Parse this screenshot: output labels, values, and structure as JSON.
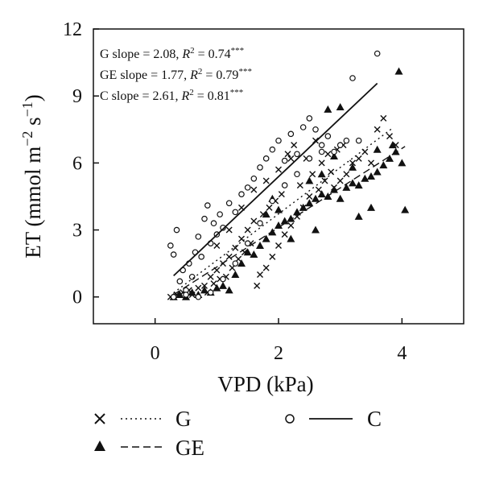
{
  "chart_data": {
    "type": "scatter",
    "xlabel": "VPD (kPa)",
    "ylabel_main": "ET (mmol m",
    "ylabel_exp1": "−2",
    "ylabel_mid": " s",
    "ylabel_exp2": "−1",
    "ylabel_end": ")",
    "xlim": [
      -1,
      5
    ],
    "ylim": [
      -1.2,
      12
    ],
    "xticks": [
      "0",
      "2",
      "4"
    ],
    "yticks": [
      "0",
      "3",
      "6",
      "9",
      "12"
    ],
    "legend": [
      {
        "marker": "×",
        "label": "G",
        "line": "dotted"
      },
      {
        "marker": "○",
        "label": "C",
        "line": "solid"
      },
      {
        "marker": "▲",
        "label": "GE",
        "line": "dashed"
      }
    ],
    "annotations": [
      {
        "series": "G",
        "slope_text": "G slope = 2.08, ",
        "r2_label": "R",
        "r2_sup": "2",
        "r2_value": " = 0.74",
        "sig": "***"
      },
      {
        "series": "GE",
        "slope_text": "GE slope = 1.77, ",
        "r2_label": "R",
        "r2_sup": "2",
        "r2_value": " = 0.79",
        "sig": "***"
      },
      {
        "series": "C",
        "slope_text": "C slope = 2.61, ",
        "r2_label": "R",
        "r2_sup": "2",
        "r2_value": " = 0.81",
        "sig": "***"
      }
    ],
    "series": [
      {
        "name": "G",
        "marker": "x",
        "fit": {
          "slope": 2.08,
          "x_range": [
            0.3,
            3.85
          ]
        },
        "points": [
          [
            0.25,
            0.0
          ],
          [
            0.35,
            0.1
          ],
          [
            0.45,
            0.2
          ],
          [
            0.55,
            0.3
          ],
          [
            0.6,
            0.1
          ],
          [
            0.7,
            0.4
          ],
          [
            0.8,
            0.5
          ],
          [
            0.85,
            0.2
          ],
          [
            0.9,
            0.9
          ],
          [
            0.95,
            0.6
          ],
          [
            1.0,
            1.2
          ],
          [
            1.05,
            0.8
          ],
          [
            1.1,
            1.5
          ],
          [
            1.15,
            0.9
          ],
          [
            1.2,
            1.8
          ],
          [
            1.25,
            1.3
          ],
          [
            1.3,
            2.2
          ],
          [
            1.35,
            1.7
          ],
          [
            1.4,
            2.6
          ],
          [
            1.45,
            2.0
          ],
          [
            1.5,
            3.0
          ],
          [
            1.55,
            2.4
          ],
          [
            1.6,
            3.4
          ],
          [
            1.65,
            0.5
          ],
          [
            1.7,
            1.0
          ],
          [
            1.75,
            3.7
          ],
          [
            1.8,
            1.3
          ],
          [
            1.85,
            4.0
          ],
          [
            1.9,
            1.8
          ],
          [
            1.95,
            4.3
          ],
          [
            2.0,
            2.3
          ],
          [
            2.05,
            4.6
          ],
          [
            2.1,
            2.8
          ],
          [
            2.15,
            6.4
          ],
          [
            2.2,
            3.2
          ],
          [
            2.25,
            6.8
          ],
          [
            2.3,
            3.6
          ],
          [
            2.35,
            5.0
          ],
          [
            2.4,
            4.0
          ],
          [
            2.45,
            6.2
          ],
          [
            2.5,
            4.5
          ],
          [
            2.55,
            5.5
          ],
          [
            2.6,
            7.0
          ],
          [
            2.65,
            4.8
          ],
          [
            2.7,
            6.0
          ],
          [
            2.75,
            5.2
          ],
          [
            2.8,
            6.4
          ],
          [
            2.85,
            5.6
          ],
          [
            2.9,
            4.9
          ],
          [
            2.95,
            6.6
          ],
          [
            3.0,
            5.2
          ],
          [
            3.05,
            6.8
          ],
          [
            3.1,
            5.5
          ],
          [
            3.2,
            6.0
          ],
          [
            3.3,
            6.2
          ],
          [
            3.4,
            6.5
          ],
          [
            3.5,
            6.0
          ],
          [
            3.6,
            7.5
          ],
          [
            3.7,
            8.0
          ],
          [
            3.8,
            7.2
          ],
          [
            3.9,
            6.8
          ],
          [
            1.0,
            2.3
          ],
          [
            1.2,
            3.0
          ],
          [
            1.4,
            4.0
          ],
          [
            1.6,
            4.8
          ],
          [
            1.8,
            5.2
          ],
          [
            2.0,
            5.7
          ],
          [
            2.2,
            6.2
          ]
        ]
      },
      {
        "name": "GE",
        "marker": "triangle",
        "fit": {
          "slope": 1.77,
          "x_range": [
            0.3,
            4.05
          ]
        },
        "points": [
          [
            0.3,
            0.0
          ],
          [
            0.4,
            0.1
          ],
          [
            0.5,
            0.0
          ],
          [
            0.6,
            0.2
          ],
          [
            0.7,
            0.1
          ],
          [
            0.8,
            0.3
          ],
          [
            0.9,
            0.2
          ],
          [
            1.0,
            0.4
          ],
          [
            1.1,
            0.5
          ],
          [
            1.2,
            0.3
          ],
          [
            1.3,
            1.0
          ],
          [
            1.4,
            1.5
          ],
          [
            1.5,
            2.0
          ],
          [
            1.6,
            1.9
          ],
          [
            1.7,
            2.3
          ],
          [
            1.8,
            2.6
          ],
          [
            1.9,
            2.9
          ],
          [
            2.0,
            3.2
          ],
          [
            2.1,
            3.4
          ],
          [
            2.2,
            3.5
          ],
          [
            2.3,
            3.8
          ],
          [
            2.4,
            4.0
          ],
          [
            2.5,
            4.2
          ],
          [
            2.6,
            4.4
          ],
          [
            2.7,
            4.6
          ],
          [
            2.8,
            4.5
          ],
          [
            2.9,
            4.8
          ],
          [
            3.0,
            4.4
          ],
          [
            3.1,
            4.9
          ],
          [
            3.2,
            5.1
          ],
          [
            3.3,
            5.0
          ],
          [
            3.4,
            5.3
          ],
          [
            3.5,
            5.4
          ],
          [
            3.6,
            5.6
          ],
          [
            3.7,
            5.9
          ],
          [
            3.8,
            6.2
          ],
          [
            3.9,
            6.5
          ],
          [
            4.0,
            6.0
          ],
          [
            4.05,
            3.9
          ],
          [
            3.95,
            10.1
          ],
          [
            3.0,
            8.5
          ],
          [
            2.8,
            8.4
          ],
          [
            3.5,
            4.0
          ],
          [
            3.3,
            3.6
          ],
          [
            2.6,
            3.0
          ],
          [
            2.2,
            2.6
          ],
          [
            2.0,
            3.9
          ],
          [
            1.9,
            4.4
          ],
          [
            1.8,
            3.7
          ],
          [
            2.5,
            5.2
          ],
          [
            3.2,
            5.8
          ],
          [
            3.6,
            6.6
          ],
          [
            3.85,
            6.8
          ],
          [
            2.9,
            6.3
          ],
          [
            2.7,
            5.5
          ]
        ]
      },
      {
        "name": "C",
        "marker": "circle",
        "fit": {
          "slope": 2.61,
          "x_range": [
            0.3,
            3.6
          ]
        },
        "points": [
          [
            0.25,
            2.3
          ],
          [
            0.3,
            1.9
          ],
          [
            0.35,
            3.0
          ],
          [
            0.4,
            0.7
          ],
          [
            0.45,
            1.2
          ],
          [
            0.5,
            0.3
          ],
          [
            0.55,
            1.5
          ],
          [
            0.6,
            0.9
          ],
          [
            0.65,
            2.0
          ],
          [
            0.7,
            2.7
          ],
          [
            0.75,
            1.8
          ],
          [
            0.8,
            3.5
          ],
          [
            0.85,
            4.1
          ],
          [
            0.9,
            2.4
          ],
          [
            0.95,
            3.3
          ],
          [
            1.0,
            2.8
          ],
          [
            1.05,
            3.7
          ],
          [
            1.1,
            3.1
          ],
          [
            1.2,
            4.2
          ],
          [
            1.3,
            3.8
          ],
          [
            1.4,
            4.6
          ],
          [
            1.5,
            4.9
          ],
          [
            1.6,
            5.3
          ],
          [
            1.7,
            5.8
          ],
          [
            1.8,
            6.2
          ],
          [
            1.9,
            6.6
          ],
          [
            2.0,
            7.0
          ],
          [
            2.1,
            6.1
          ],
          [
            2.2,
            7.3
          ],
          [
            2.3,
            6.4
          ],
          [
            2.4,
            7.6
          ],
          [
            2.5,
            8.0
          ],
          [
            2.6,
            7.5
          ],
          [
            2.7,
            6.8
          ],
          [
            2.8,
            7.2
          ],
          [
            2.9,
            6.5
          ],
          [
            3.0,
            6.8
          ],
          [
            3.1,
            7.0
          ],
          [
            3.2,
            9.8
          ],
          [
            3.6,
            10.9
          ],
          [
            0.3,
            0.0
          ],
          [
            0.5,
            0.1
          ],
          [
            0.7,
            0.0
          ],
          [
            0.9,
            0.2
          ],
          [
            1.1,
            0.8
          ],
          [
            1.3,
            1.5
          ],
          [
            1.5,
            2.4
          ],
          [
            1.7,
            3.3
          ],
          [
            1.9,
            4.3
          ],
          [
            2.1,
            5.0
          ],
          [
            2.3,
            5.5
          ],
          [
            2.5,
            6.2
          ],
          [
            2.7,
            6.5
          ],
          [
            3.3,
            7.0
          ]
        ]
      }
    ]
  }
}
